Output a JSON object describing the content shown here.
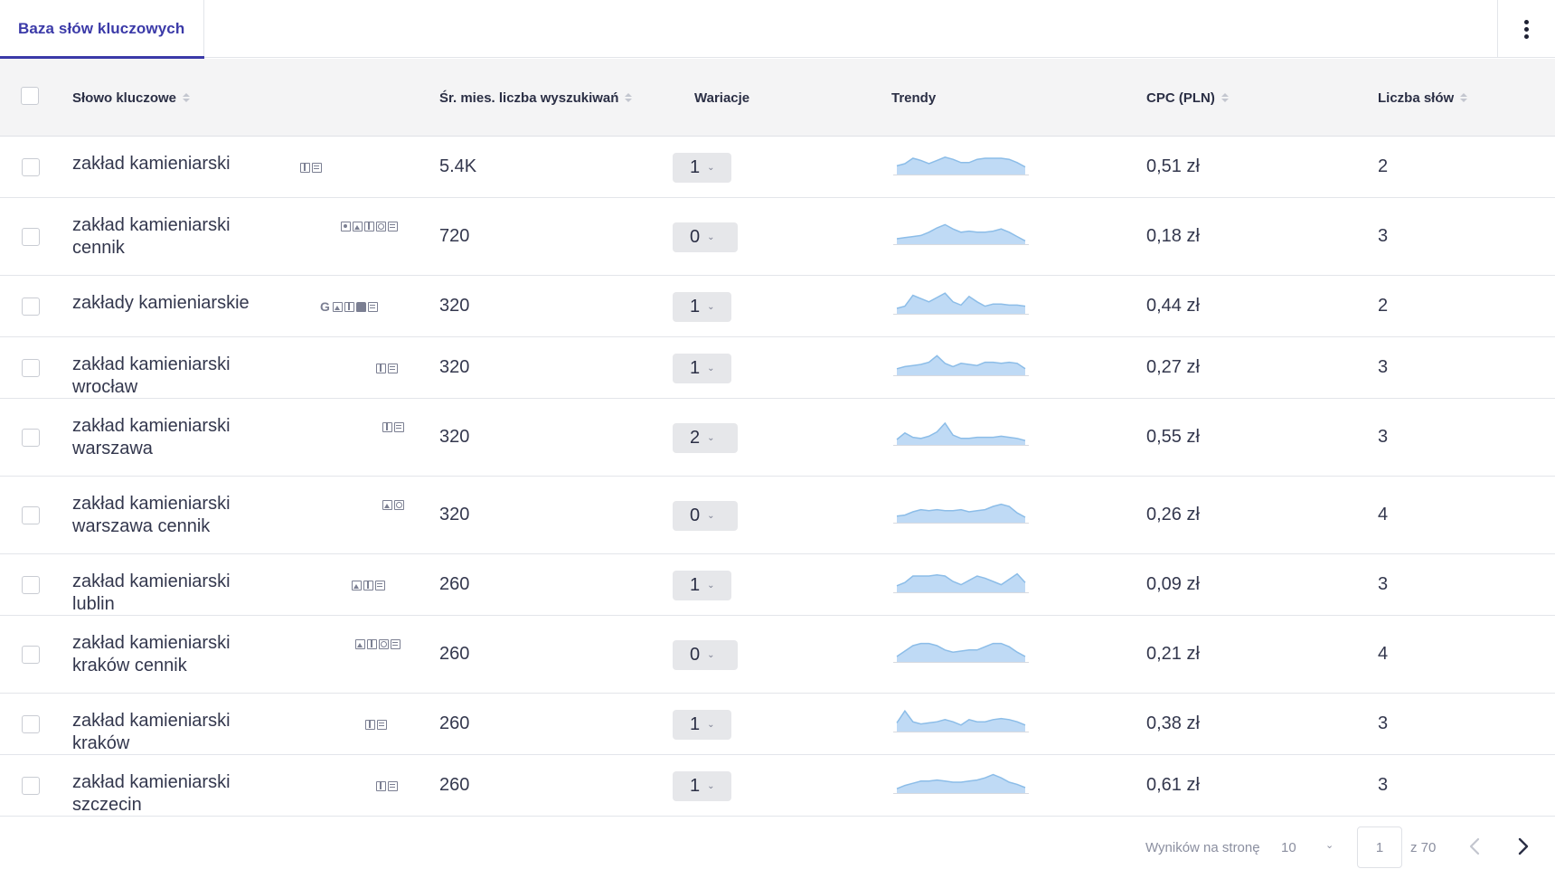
{
  "tabs": [
    {
      "label": "Baza słów kluczowych",
      "active": true
    }
  ],
  "columns": {
    "keyword": "Słowo kluczowe",
    "volume": "Śr. mies. liczba wyszukiwań",
    "variations": "Wariacje",
    "trends": "Trendy",
    "cpc": "CPC (PLN)",
    "word_count": "Liczba słów"
  },
  "rows": [
    {
      "keyword": "zakład kamieniarski",
      "features": [
        "map-icon",
        "news-icon"
      ],
      "volume": "5.4K",
      "variations": "1",
      "cpc": "0,51 zł",
      "words": "2",
      "trend": [
        0.4,
        0.5,
        0.75,
        0.65,
        0.5,
        0.65,
        0.8,
        0.7,
        0.55,
        0.55,
        0.7,
        0.75,
        0.75,
        0.75,
        0.7,
        0.55,
        0.35
      ]
    },
    {
      "keyword": "zakład kamieniarski cennik",
      "features": [
        "review-icon",
        "image-icon",
        "map-icon",
        "site-icon",
        "news-icon"
      ],
      "volume": "720",
      "variations": "0",
      "cpc": "0,18 zł",
      "words": "3",
      "trend": [
        0.25,
        0.3,
        0.35,
        0.4,
        0.55,
        0.75,
        0.9,
        0.7,
        0.55,
        0.6,
        0.55,
        0.55,
        0.6,
        0.7,
        0.55,
        0.35,
        0.15
      ]
    },
    {
      "keyword": "zakłady kamieniarskie",
      "features": [
        "google-icon",
        "image-icon",
        "map-icon",
        "bag-icon",
        "news-icon"
      ],
      "volume": "320",
      "variations": "1",
      "cpc": "0,44 zł",
      "words": "2",
      "trend": [
        0.25,
        0.35,
        0.85,
        0.7,
        0.55,
        0.75,
        0.95,
        0.55,
        0.4,
        0.8,
        0.55,
        0.35,
        0.45,
        0.45,
        0.4,
        0.4,
        0.35
      ]
    },
    {
      "keyword": "zakład kamieniarski wrocław",
      "features": [
        "map-icon",
        "news-icon"
      ],
      "volume": "320",
      "variations": "1",
      "cpc": "0,27 zł",
      "words": "3",
      "trend": [
        0.3,
        0.4,
        0.45,
        0.5,
        0.6,
        0.9,
        0.55,
        0.4,
        0.55,
        0.5,
        0.45,
        0.6,
        0.6,
        0.55,
        0.6,
        0.55,
        0.3
      ]
    },
    {
      "keyword": "zakład kamieniarski warszawa",
      "features": [
        "map-icon",
        "news-icon"
      ],
      "volume": "320",
      "variations": "2",
      "cpc": "0,55 zł",
      "words": "3",
      "trend": [
        0.25,
        0.55,
        0.35,
        0.3,
        0.4,
        0.6,
        1.0,
        0.45,
        0.3,
        0.3,
        0.35,
        0.35,
        0.35,
        0.4,
        0.35,
        0.3,
        0.2
      ]
    },
    {
      "keyword": "zakład kamieniarski warszawa cennik",
      "features": [
        "image-icon",
        "site-icon"
      ],
      "volume": "320",
      "variations": "0",
      "cpc": "0,26 zł",
      "words": "4",
      "trend": [
        0.3,
        0.35,
        0.5,
        0.6,
        0.55,
        0.6,
        0.55,
        0.55,
        0.6,
        0.5,
        0.55,
        0.6,
        0.75,
        0.85,
        0.75,
        0.45,
        0.25
      ]
    },
    {
      "keyword": "zakład kamieniarski lublin",
      "features": [
        "image-icon",
        "map-icon",
        "news-icon"
      ],
      "volume": "260",
      "variations": "1",
      "cpc": "0,09 zł",
      "words": "3",
      "trend": [
        0.3,
        0.45,
        0.75,
        0.75,
        0.75,
        0.8,
        0.75,
        0.5,
        0.35,
        0.55,
        0.75,
        0.65,
        0.5,
        0.35,
        0.6,
        0.85,
        0.45
      ]
    },
    {
      "keyword": "zakład kamieniarski kraków cennik",
      "features": [
        "image-icon",
        "map-icon",
        "site-icon",
        "news-icon"
      ],
      "volume": "260",
      "variations": "0",
      "cpc": "0,21 zł",
      "words": "4",
      "trend": [
        0.25,
        0.5,
        0.75,
        0.85,
        0.85,
        0.75,
        0.55,
        0.45,
        0.5,
        0.55,
        0.55,
        0.7,
        0.85,
        0.85,
        0.7,
        0.45,
        0.25
      ]
    },
    {
      "keyword": "zakład kamieniarski kraków",
      "features": [
        "map-icon",
        "news-icon"
      ],
      "volume": "260",
      "variations": "1",
      "cpc": "0,38 zł",
      "words": "3",
      "trend": [
        0.4,
        0.95,
        0.45,
        0.35,
        0.4,
        0.45,
        0.55,
        0.45,
        0.3,
        0.55,
        0.45,
        0.45,
        0.55,
        0.6,
        0.55,
        0.45,
        0.3
      ]
    },
    {
      "keyword": "zakład kamieniarski szczecin",
      "features": [
        "map-icon",
        "news-icon"
      ],
      "volume": "260",
      "variations": "1",
      "cpc": "0,61 zł",
      "words": "3",
      "trend": [
        0.2,
        0.35,
        0.45,
        0.55,
        0.55,
        0.6,
        0.55,
        0.5,
        0.5,
        0.55,
        0.6,
        0.7,
        0.85,
        0.7,
        0.5,
        0.4,
        0.25
      ]
    }
  ],
  "pagination": {
    "per_page_label": "Wyników na stronę",
    "per_page_value": "10",
    "page": "1",
    "of_label": "z 70"
  },
  "colors": {
    "accent": "#3b3aa8",
    "trend_fill": "#bfdaf5",
    "trend_line": "#8cbde8"
  }
}
